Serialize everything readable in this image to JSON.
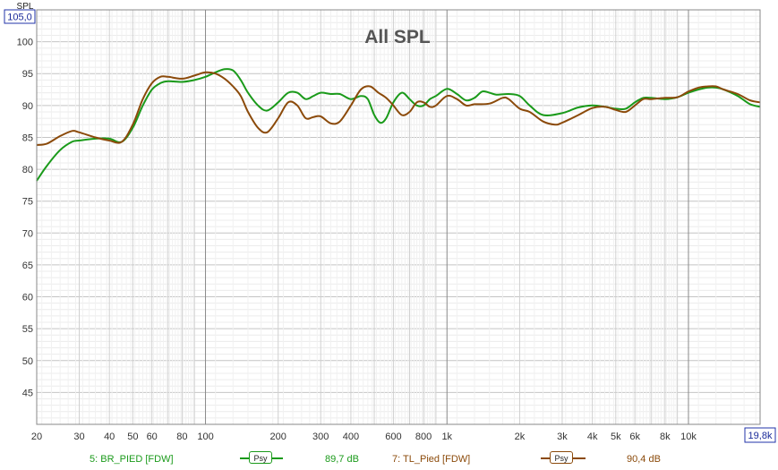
{
  "chart_data": {
    "type": "line",
    "title": "All SPL",
    "ylabel": "SPL",
    "y_top_label": "105,0",
    "x_right_label": "19,8k",
    "x_scale": "log",
    "xlim": [
      20,
      19800
    ],
    "ylim": [
      40,
      105
    ],
    "grid": true,
    "y_ticks": [
      45,
      50,
      55,
      60,
      65,
      70,
      75,
      80,
      85,
      90,
      95,
      100
    ],
    "x_ticks": [
      {
        "value": 20,
        "label": "20"
      },
      {
        "value": 30,
        "label": "30"
      },
      {
        "value": 40,
        "label": "40"
      },
      {
        "value": 50,
        "label": "50"
      },
      {
        "value": 60,
        "label": "60"
      },
      {
        "value": 80,
        "label": "80"
      },
      {
        "value": 100,
        "label": "100"
      },
      {
        "value": 200,
        "label": "200"
      },
      {
        "value": 300,
        "label": "300"
      },
      {
        "value": 400,
        "label": "400"
      },
      {
        "value": 600,
        "label": "600"
      },
      {
        "value": 800,
        "label": "800"
      },
      {
        "value": 1000,
        "label": "1k"
      },
      {
        "value": 2000,
        "label": "2k"
      },
      {
        "value": 3000,
        "label": "3k"
      },
      {
        "value": 4000,
        "label": "4k"
      },
      {
        "value": 5000,
        "label": "5k"
      },
      {
        "value": 6000,
        "label": "6k"
      },
      {
        "value": 8000,
        "label": "8k"
      },
      {
        "value": 10000,
        "label": "10k"
      }
    ],
    "series": [
      {
        "name": "5: BR_PIED [FDW]",
        "color": "#1a9a1a",
        "smoothing": "Psy",
        "level": "89,7 dB",
        "points": [
          [
            20,
            78.2
          ],
          [
            22,
            80.5
          ],
          [
            25,
            83
          ],
          [
            28,
            84.3
          ],
          [
            30,
            84.5
          ],
          [
            35,
            84.8
          ],
          [
            40,
            84.8
          ],
          [
            45,
            84.3
          ],
          [
            50,
            86.5
          ],
          [
            55,
            90
          ],
          [
            60,
            92.5
          ],
          [
            65,
            93.5
          ],
          [
            70,
            93.8
          ],
          [
            80,
            93.7
          ],
          [
            90,
            94
          ],
          [
            100,
            94.5
          ],
          [
            110,
            95.2
          ],
          [
            120,
            95.7
          ],
          [
            130,
            95.5
          ],
          [
            140,
            94
          ],
          [
            150,
            92
          ],
          [
            165,
            90
          ],
          [
            180,
            89.2
          ],
          [
            200,
            90.5
          ],
          [
            220,
            92
          ],
          [
            240,
            92
          ],
          [
            260,
            91
          ],
          [
            280,
            91.5
          ],
          [
            300,
            92
          ],
          [
            330,
            91.8
          ],
          [
            360,
            91.8
          ],
          [
            400,
            91
          ],
          [
            440,
            91.5
          ],
          [
            470,
            91
          ],
          [
            500,
            88.5
          ],
          [
            530,
            87.3
          ],
          [
            560,
            88
          ],
          [
            600,
            90.5
          ],
          [
            650,
            92
          ],
          [
            700,
            91
          ],
          [
            750,
            90
          ],
          [
            800,
            90
          ],
          [
            850,
            91
          ],
          [
            900,
            91.5
          ],
          [
            1000,
            92.6
          ],
          [
            1100,
            91.8
          ],
          [
            1200,
            90.8
          ],
          [
            1300,
            91.2
          ],
          [
            1400,
            92.2
          ],
          [
            1500,
            92
          ],
          [
            1600,
            91.7
          ],
          [
            1800,
            91.8
          ],
          [
            2000,
            91.5
          ],
          [
            2200,
            90
          ],
          [
            2500,
            88.5
          ],
          [
            3000,
            88.8
          ],
          [
            3500,
            89.7
          ],
          [
            4000,
            90
          ],
          [
            4500,
            89.8
          ],
          [
            5000,
            89.5
          ],
          [
            5500,
            89.5
          ],
          [
            6000,
            90.5
          ],
          [
            6500,
            91.2
          ],
          [
            7000,
            91.2
          ],
          [
            8000,
            91
          ],
          [
            9000,
            91.3
          ],
          [
            10000,
            92
          ],
          [
            11000,
            92.5
          ],
          [
            12000,
            92.8
          ],
          [
            13000,
            92.8
          ],
          [
            14000,
            92.5
          ],
          [
            16000,
            91.5
          ],
          [
            18000,
            90.2
          ],
          [
            19800,
            89.8
          ]
        ]
      },
      {
        "name": "7: TL_Pied [FDW]",
        "color": "#8b4a0a",
        "smoothing": "Psy",
        "level": "90,4 dB",
        "points": [
          [
            20,
            83.8
          ],
          [
            22,
            84
          ],
          [
            25,
            85.2
          ],
          [
            28,
            86
          ],
          [
            30,
            85.8
          ],
          [
            35,
            85
          ],
          [
            40,
            84.5
          ],
          [
            45,
            84.3
          ],
          [
            50,
            87
          ],
          [
            55,
            91
          ],
          [
            60,
            93.5
          ],
          [
            65,
            94.5
          ],
          [
            70,
            94.5
          ],
          [
            80,
            94.2
          ],
          [
            90,
            94.7
          ],
          [
            100,
            95.2
          ],
          [
            110,
            95
          ],
          [
            120,
            94.2
          ],
          [
            130,
            93
          ],
          [
            140,
            91.5
          ],
          [
            150,
            89
          ],
          [
            165,
            86.5
          ],
          [
            180,
            85.8
          ],
          [
            200,
            88
          ],
          [
            220,
            90.5
          ],
          [
            240,
            90
          ],
          [
            260,
            88
          ],
          [
            280,
            88.2
          ],
          [
            300,
            88.3
          ],
          [
            330,
            87.2
          ],
          [
            360,
            87.5
          ],
          [
            400,
            90
          ],
          [
            440,
            92.5
          ],
          [
            480,
            93
          ],
          [
            520,
            92
          ],
          [
            560,
            91.2
          ],
          [
            600,
            90
          ],
          [
            650,
            88.5
          ],
          [
            700,
            89
          ],
          [
            750,
            90.5
          ],
          [
            800,
            90.5
          ],
          [
            850,
            89.8
          ],
          [
            900,
            90
          ],
          [
            1000,
            91.5
          ],
          [
            1100,
            91
          ],
          [
            1200,
            90
          ],
          [
            1300,
            90.2
          ],
          [
            1500,
            90.3
          ],
          [
            1700,
            91.2
          ],
          [
            1800,
            91
          ],
          [
            2000,
            89.5
          ],
          [
            2200,
            89
          ],
          [
            2500,
            87.5
          ],
          [
            2800,
            87
          ],
          [
            3000,
            87.3
          ],
          [
            3500,
            88.5
          ],
          [
            4000,
            89.6
          ],
          [
            4500,
            89.8
          ],
          [
            5000,
            89.3
          ],
          [
            5500,
            89
          ],
          [
            6000,
            90
          ],
          [
            6500,
            91
          ],
          [
            7000,
            91
          ],
          [
            8000,
            91.2
          ],
          [
            9000,
            91.3
          ],
          [
            10000,
            92.2
          ],
          [
            11000,
            92.8
          ],
          [
            12000,
            93
          ],
          [
            13000,
            93
          ],
          [
            14000,
            92.5
          ],
          [
            16000,
            91.8
          ],
          [
            18000,
            90.8
          ],
          [
            19800,
            90.5
          ]
        ]
      }
    ]
  },
  "legend": {
    "smoothing_label": "Psy"
  }
}
